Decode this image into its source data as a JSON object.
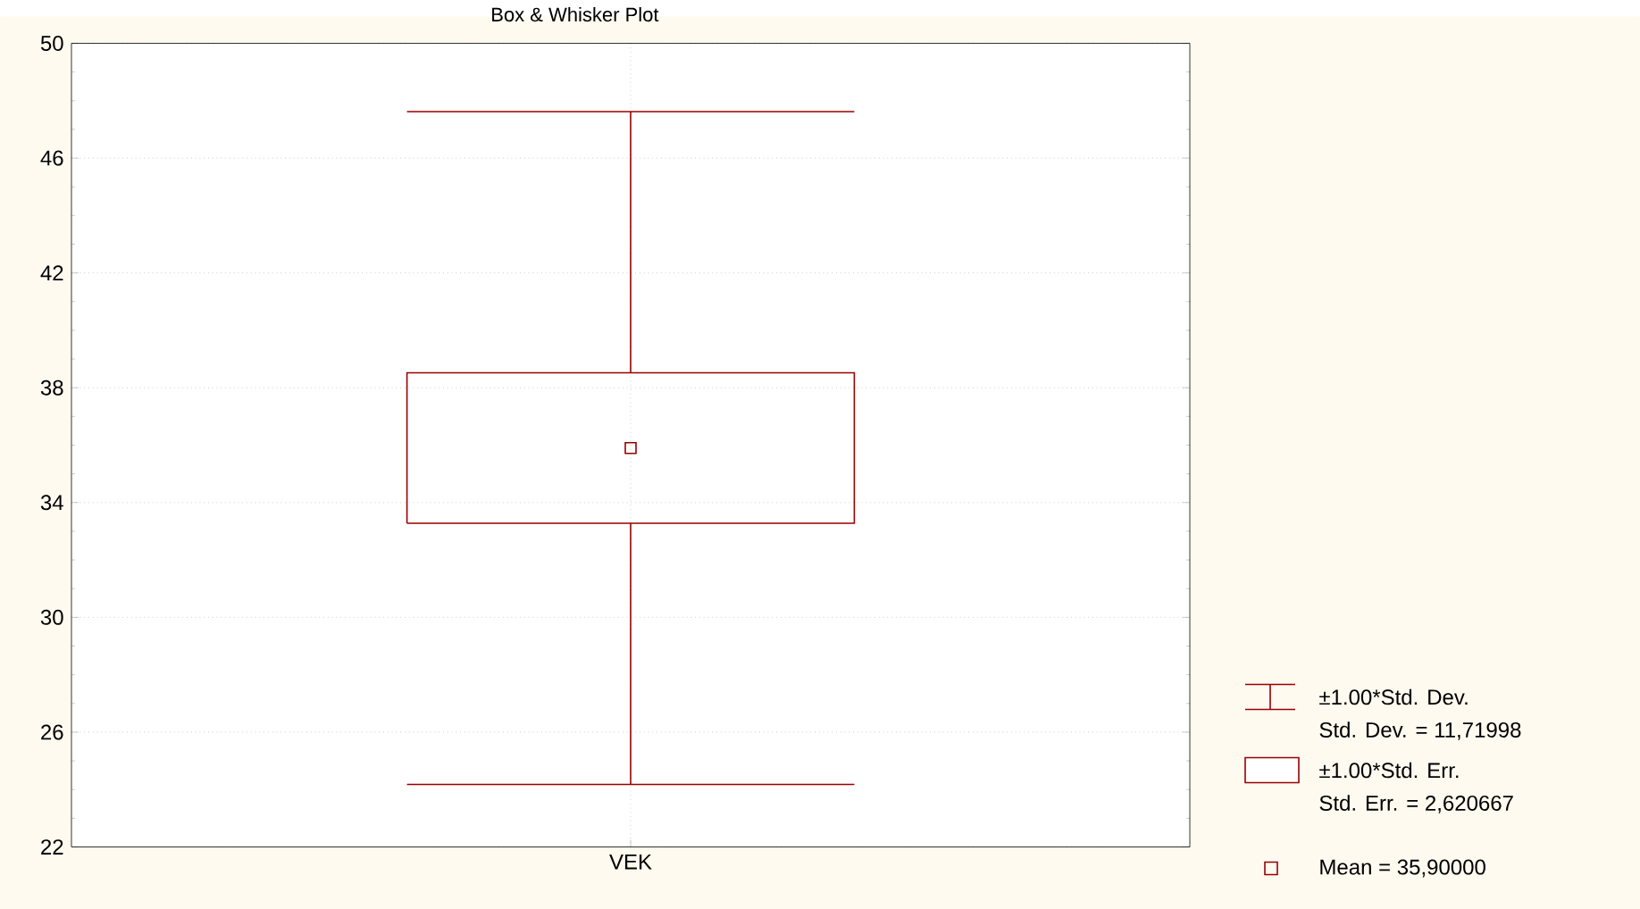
{
  "chart_data": {
    "type": "box",
    "title": "Box & Whisker Plot",
    "categories": [
      "VEK"
    ],
    "boxes": [
      {
        "low": 24.18002,
        "q1": 33.279333,
        "q3": 38.520667,
        "high": 47.61998,
        "mean": 35.9
      }
    ],
    "color": "#990000",
    "ylim": [
      22,
      50
    ],
    "yticks": [
      22,
      26,
      30,
      34,
      38,
      42,
      46,
      50
    ],
    "grid": true,
    "annotations": [
      "±1.00*Std. Dev.",
      "Std. Dev. = 11,71998",
      "±1.00*Std. Err.",
      "Std. Err. = 2,620667",
      "Mean = 35,90000"
    ]
  }
}
